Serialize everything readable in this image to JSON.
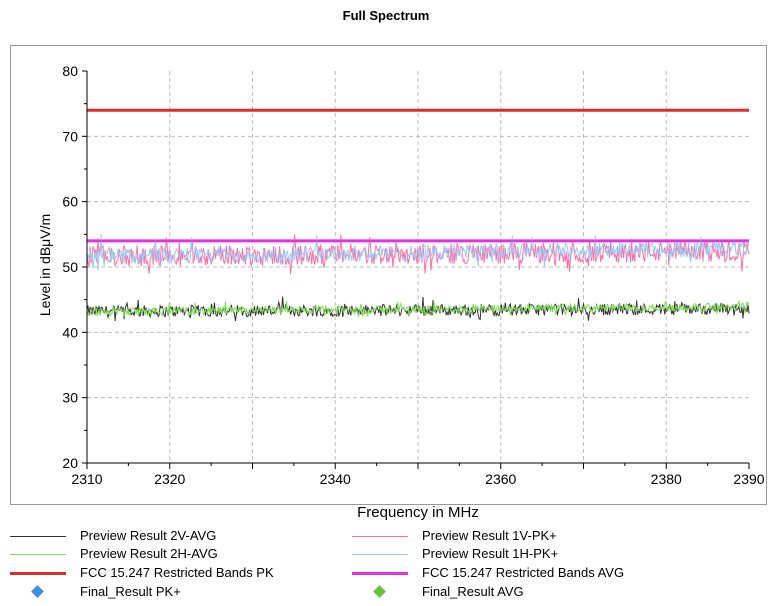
{
  "chart_data": {
    "type": "line",
    "title": "Full Spectrum",
    "xlabel": "Frequency in MHz",
    "ylabel": "Level in dBμV/m",
    "xlim": [
      2310,
      2390
    ],
    "ylim": [
      20,
      80
    ],
    "x_ticks": [
      2310,
      2320,
      2340,
      2360,
      2380,
      2390
    ],
    "y_ticks": [
      20,
      30,
      40,
      50,
      60,
      70,
      80
    ],
    "grid": true,
    "legend_position": "bottom",
    "series": [
      {
        "name": "Preview Result 2V-AVG",
        "color": "#333333",
        "kind": "noise",
        "baseline_start": 43.2,
        "baseline_end": 43.6,
        "spread": 0.9,
        "peak_max": 45.5
      },
      {
        "name": "Preview Result 1V-PK+",
        "color": "#ff6fa6",
        "kind": "noise",
        "baseline_start": 51.6,
        "baseline_end": 52.4,
        "spread": 1.6,
        "peak_max": 55.0
      },
      {
        "name": "Preview Result 2H-AVG",
        "color": "#7ae04f",
        "kind": "noise",
        "baseline_start": 43.1,
        "baseline_end": 43.9,
        "spread": 0.6,
        "peak_max": 44.8
      },
      {
        "name": "Preview Result 1H-PK+",
        "color": "#99c8f5",
        "kind": "noise",
        "baseline_start": 51.6,
        "baseline_end": 52.8,
        "spread": 1.2,
        "peak_max": 55.2
      },
      {
        "name": "FCC 15.247 Restricted Bands PK",
        "color": "#e02b2b",
        "kind": "limit",
        "value": 74
      },
      {
        "name": "FCC 15.247 Restricted Bands AVG",
        "color": "#e331e3",
        "kind": "limit",
        "value": 54
      }
    ],
    "markers": [
      {
        "name": "Final_Result PK+",
        "color": "#3b8fdc",
        "points": []
      },
      {
        "name": "Final_Result AVG",
        "color": "#6cc23c",
        "points": []
      }
    ]
  },
  "legend": [
    {
      "label": "Preview Result 2V-AVG",
      "color": "#333333",
      "style": "line-thin"
    },
    {
      "label": "Preview Result 1V-PK+",
      "color": "#ff6fa6",
      "style": "line-thin"
    },
    {
      "label": "Preview Result 2H-AVG",
      "color": "#7ae04f",
      "style": "line-thin"
    },
    {
      "label": "Preview Result 1H-PK+",
      "color": "#99c8f5",
      "style": "line-thin"
    },
    {
      "label": "FCC 15.247 Restricted Bands PK",
      "color": "#e02b2b",
      "style": "line-thick"
    },
    {
      "label": "FCC 15.247 Restricted Bands AVG",
      "color": "#e331e3",
      "style": "line-thick"
    },
    {
      "label": "Final_Result PK+",
      "color": "#3b8fdc",
      "style": "diamond"
    },
    {
      "label": "Final_Result AVG",
      "color": "#6cc23c",
      "style": "diamond"
    }
  ]
}
